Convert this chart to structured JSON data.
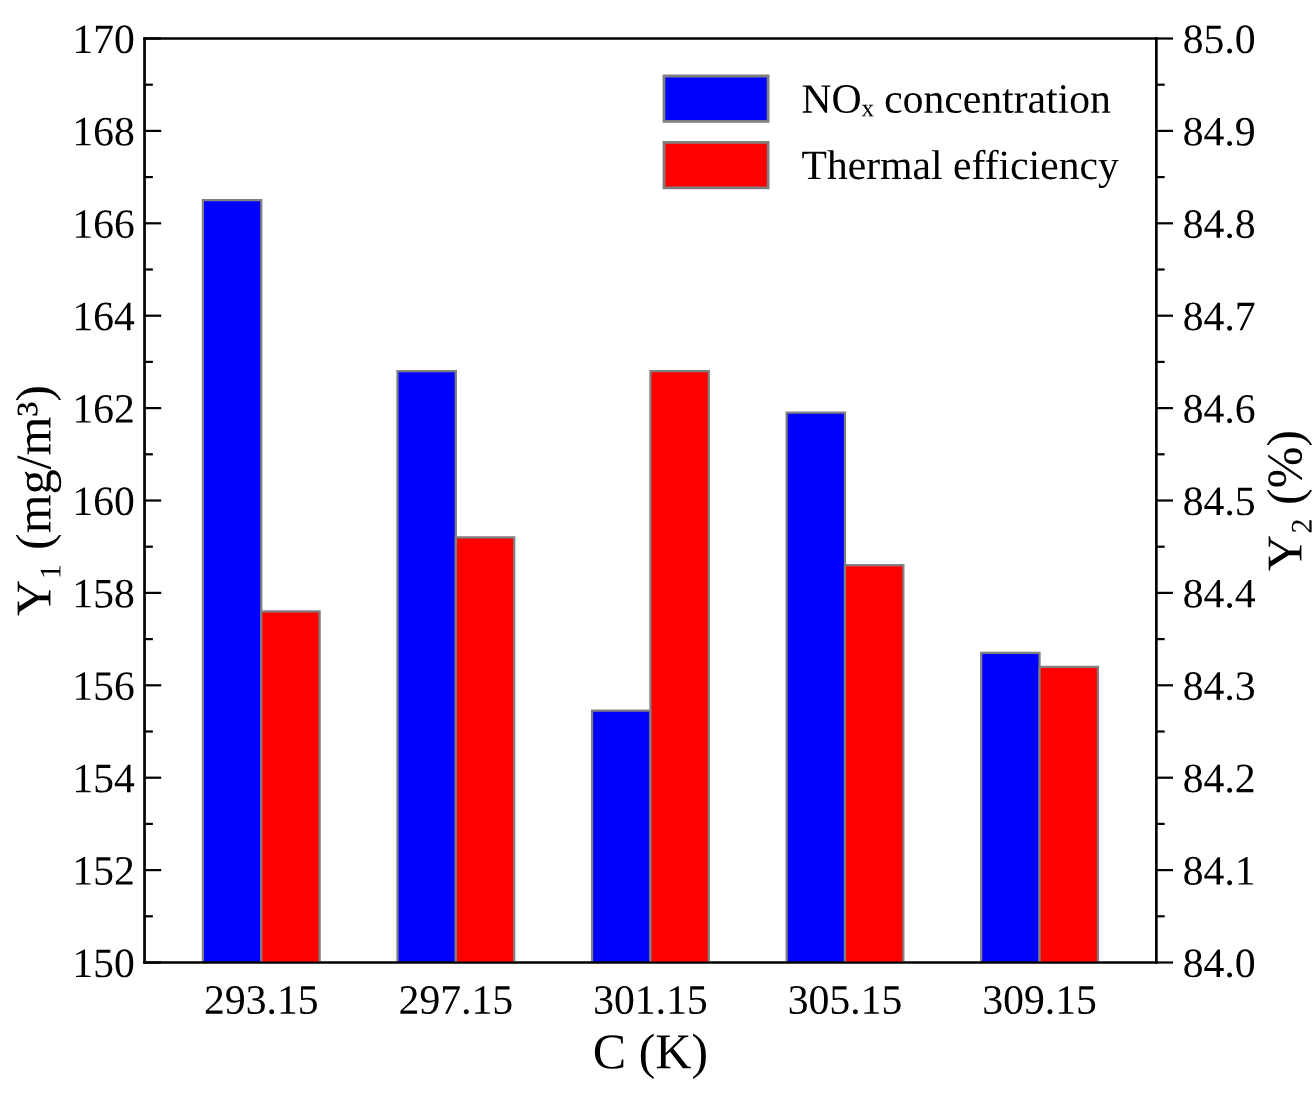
{
  "chart_data": {
    "type": "bar",
    "xlabel": "C (K)",
    "ylabel": "Y₁ (mg/m³)",
    "y2label": "Y₂ (%)",
    "categories": [
      "293.15",
      "297.15",
      "301.15",
      "305.15",
      "309.15"
    ],
    "series": [
      {
        "name": "NOₓ concentration",
        "color": "#0000ff",
        "values": [
          166.5,
          162.8,
          155.45,
          161.9,
          156.7
        ]
      },
      {
        "name": "Thermal efficiency",
        "color": "#ff0000",
        "axis": "y2",
        "values": [
          84.38,
          84.46,
          84.64,
          84.43,
          84.32
        ]
      }
    ],
    "ylim": [
      150,
      170
    ],
    "yticks": [
      150,
      {
        "value": 151,
        "label": null
      },
      152,
      {
        "value": 153,
        "label": null
      },
      154,
      {
        "value": 155,
        "label": null
      },
      156,
      {
        "value": 157,
        "label": null
      },
      158,
      {
        "value": 159,
        "label": null
      },
      160,
      {
        "value": 161,
        "label": null
      },
      162,
      {
        "value": 163,
        "label": null
      },
      164,
      {
        "value": 165,
        "label": null
      },
      166,
      {
        "value": 167,
        "label": null
      },
      168,
      {
        "value": 169,
        "label": null
      },
      170
    ],
    "y2lim": [
      84.0,
      85.0
    ],
    "y2ticks": [
      {
        "value": 84.0,
        "label": "84.0"
      },
      {
        "value": 84.05,
        "label": null
      },
      {
        "value": 84.1,
        "label": "84.1"
      },
      {
        "value": 84.15,
        "label": null
      },
      {
        "value": 84.2,
        "label": "84.2"
      },
      {
        "value": 84.25,
        "label": null
      },
      {
        "value": 84.3,
        "label": "84.3"
      },
      {
        "value": 84.35,
        "label": null
      },
      {
        "value": 84.4,
        "label": "84.4"
      },
      {
        "value": 84.45,
        "label": null
      },
      {
        "value": 84.5,
        "label": "84.5"
      },
      {
        "value": 84.55,
        "label": null
      },
      {
        "value": 84.6,
        "label": "84.6"
      },
      {
        "value": 84.65,
        "label": null
      },
      {
        "value": 84.7,
        "label": "84.7"
      },
      {
        "value": 84.75,
        "label": null
      },
      {
        "value": 84.8,
        "label": "84.8"
      },
      {
        "value": 84.85,
        "label": null
      },
      {
        "value": 84.9,
        "label": "84.9"
      },
      {
        "value": 84.95,
        "label": null
      },
      {
        "value": 85.0,
        "label": "85.0"
      }
    ],
    "legend": "top right",
    "grid": false
  }
}
